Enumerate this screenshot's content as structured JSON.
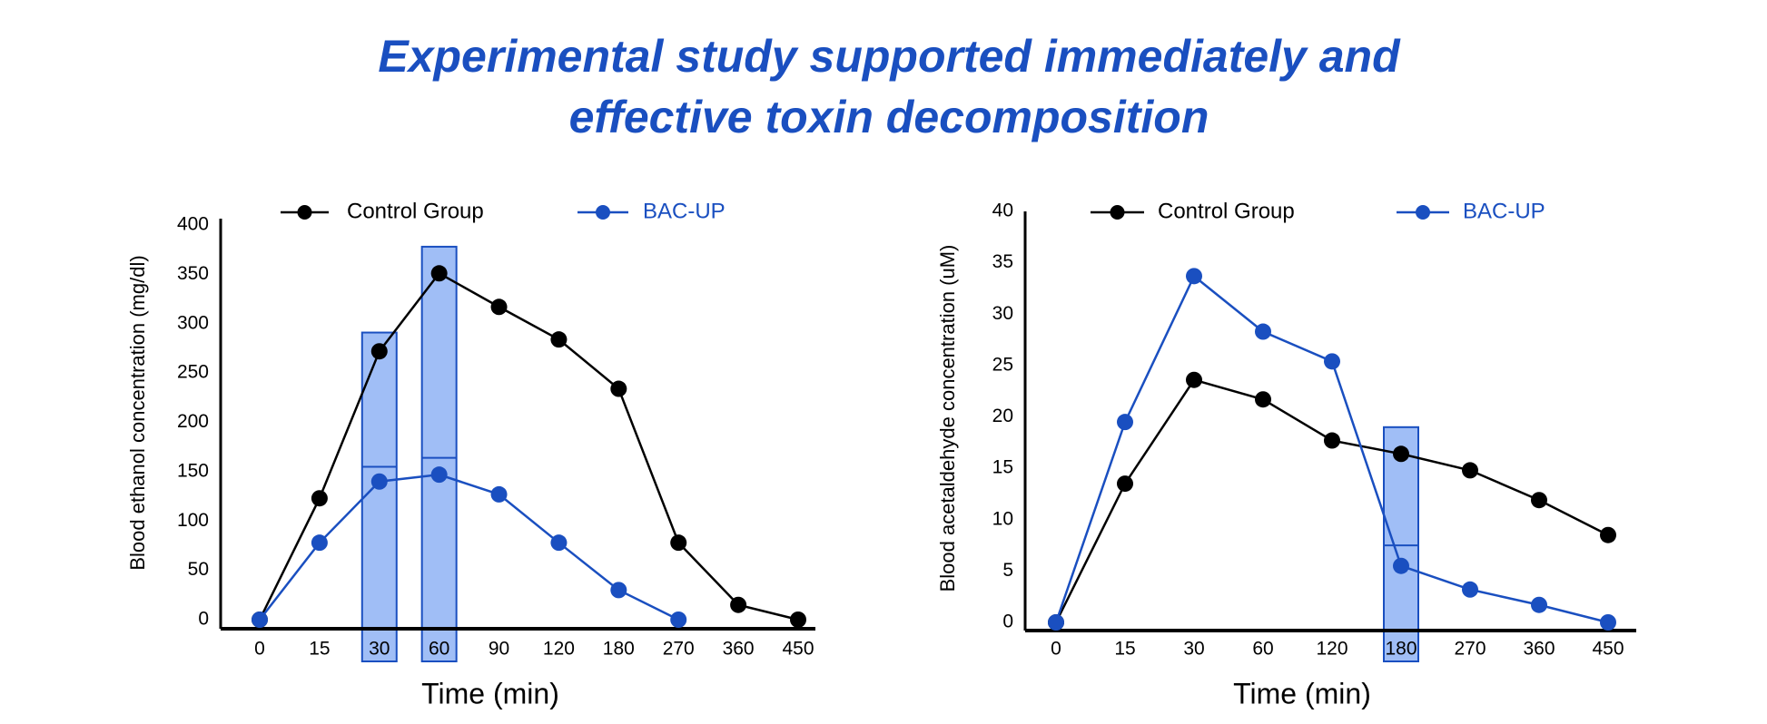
{
  "title": [
    "Experimental study supported immediately and",
    "effective toxin decomposition"
  ],
  "chart_data": [
    {
      "type": "line",
      "y_label": "Blood ethanol concentration (mg/dl)",
      "x_label": "Time (min)",
      "categories": [
        "0",
        "15",
        "30",
        "60",
        "90",
        "120",
        "180",
        "270",
        "360",
        "450"
      ],
      "series": [
        {
          "name": "Control Group",
          "color": "#000000",
          "values": [
            0,
            123,
            272,
            351,
            317,
            284,
            234,
            78,
            15,
            0
          ]
        },
        {
          "name": "BAC-UP",
          "color": "#1a4fc0",
          "values": [
            0,
            78,
            140,
            147,
            127,
            78,
            30,
            0,
            null,
            null
          ]
        }
      ],
      "highlights": [
        {
          "category": 2,
          "top": 291,
          "line": 155
        },
        {
          "category": 3,
          "top": 378,
          "line": 164
        }
      ],
      "ylim": [
        0,
        400
      ],
      "yticks": [
        0,
        50,
        100,
        150,
        200,
        250,
        300,
        350,
        400
      ]
    },
    {
      "type": "line",
      "y_label": "Blood acetaldehyde concentration (uM)",
      "x_label": "Time (min)",
      "categories": [
        "0",
        "15",
        "30",
        "60",
        "120",
        "180",
        "270",
        "360",
        "450"
      ],
      "series": [
        {
          "name": "Control Group",
          "color": "#000000",
          "values": [
            0,
            13.5,
            23.6,
            21.7,
            17.7,
            16.4,
            14.8,
            11.9,
            8.5
          ]
        },
        {
          "name": "BAC-UP",
          "color": "#1a4fc0",
          "values": [
            0,
            19.5,
            33.7,
            28.3,
            25.4,
            5.5,
            3.2,
            1.7,
            0
          ]
        }
      ],
      "highlights": [
        {
          "category": 5,
          "top": 19,
          "line": 7.5
        }
      ],
      "ylim": [
        0,
        40
      ],
      "yticks": [
        0,
        5,
        10,
        15,
        20,
        25,
        30,
        35,
        40
      ]
    }
  ]
}
